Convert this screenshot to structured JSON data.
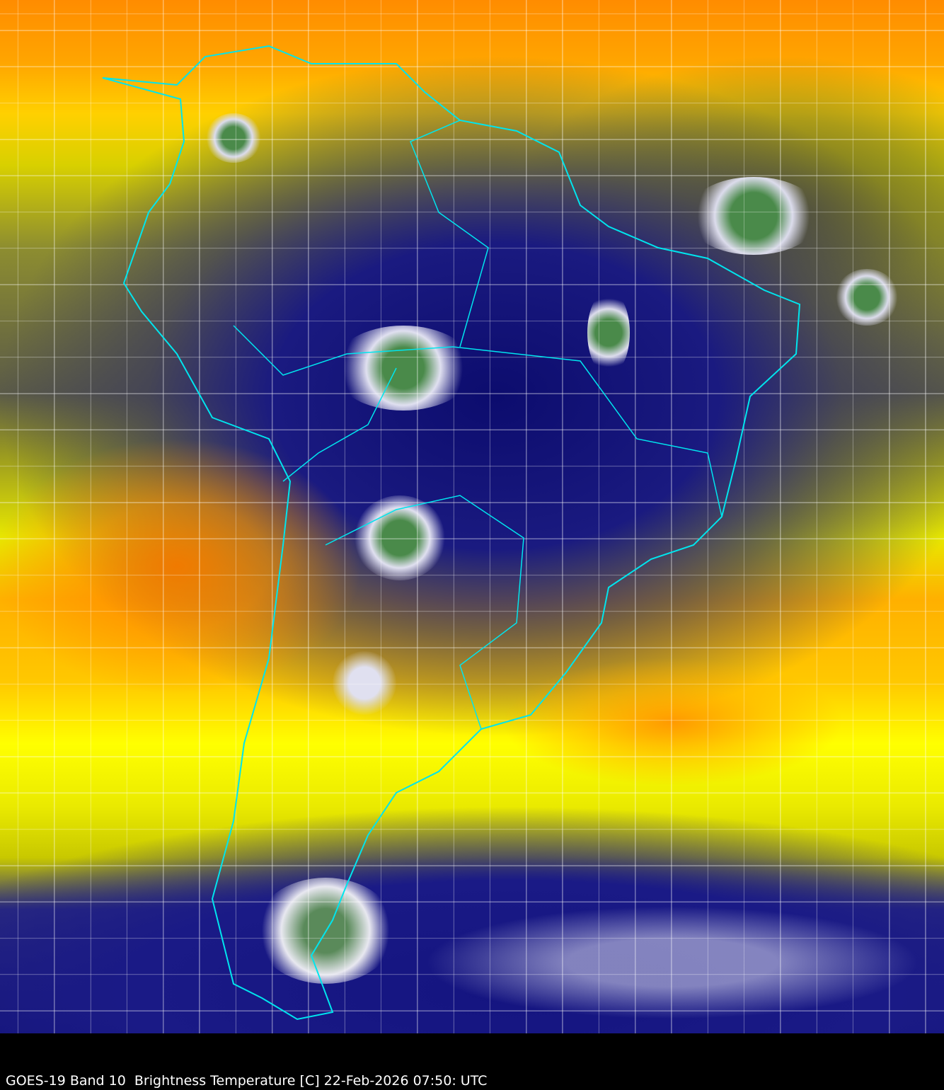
{
  "caption": "GOES-19 Band 10  Brightness Temperature [C] 22-Feb-2026 07:50: UTC",
  "colors": {
    "coastline": "#00e5ee",
    "warm": "#ff8c00",
    "mid": "#ffff00",
    "cold": "#14147a",
    "coldest": "#4a8a4a"
  }
}
